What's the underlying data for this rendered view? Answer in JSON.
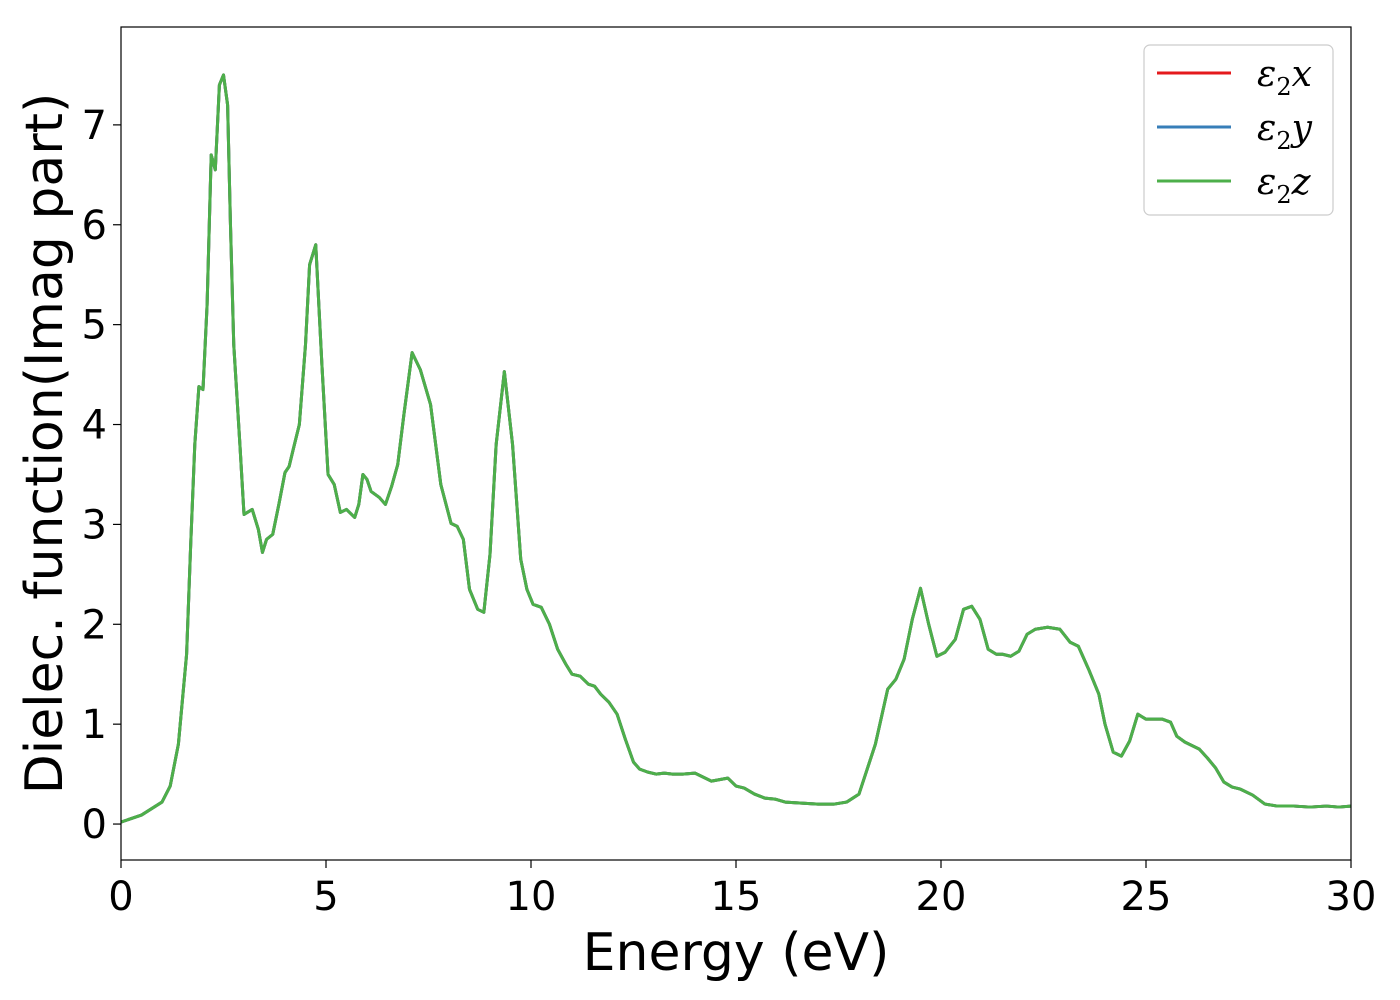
{
  "chart_data": {
    "type": "line",
    "xlabel": "Energy (eV)",
    "ylabel": "Dielec. function(Imag part)",
    "xlim": [
      0,
      30
    ],
    "ylim": [
      -0.36,
      7.98
    ],
    "xticks": [
      0,
      5,
      10,
      15,
      20,
      25,
      30
    ],
    "yticks": [
      0,
      1,
      2,
      3,
      4,
      5,
      6,
      7
    ],
    "grid": false,
    "legend_position": "top-right",
    "series": [
      {
        "name": "ε2x",
        "legend_base": "ε",
        "legend_sub": "2",
        "legend_tail": "x",
        "color": "#e41a1c"
      },
      {
        "name": "ε2y",
        "legend_base": "ε",
        "legend_sub": "2",
        "legend_tail": "y",
        "color": "#377eb8"
      },
      {
        "name": "ε2z",
        "legend_base": "ε",
        "legend_sub": "2",
        "legend_tail": "z",
        "color": "#4daf4a"
      }
    ],
    "x": [
      0,
      0.5,
      1.0,
      1.2,
      1.4,
      1.6,
      1.7,
      1.8,
      1.9,
      2.0,
      2.1,
      2.2,
      2.3,
      2.4,
      2.5,
      2.6,
      2.67,
      2.75,
      2.9,
      3.0,
      3.2,
      3.35,
      3.45,
      3.55,
      3.7,
      3.85,
      4.0,
      4.1,
      4.2,
      4.35,
      4.5,
      4.6,
      4.75,
      4.9,
      5.05,
      5.2,
      5.35,
      5.5,
      5.7,
      5.8,
      5.9,
      6.0,
      6.1,
      6.3,
      6.45,
      6.6,
      6.75,
      6.9,
      7.1,
      7.3,
      7.55,
      7.8,
      8.05,
      8.2,
      8.35,
      8.5,
      8.7,
      8.85,
      9.0,
      9.15,
      9.35,
      9.55,
      9.75,
      9.9,
      10.05,
      10.25,
      10.45,
      10.65,
      10.85,
      11.0,
      11.2,
      11.4,
      11.55,
      11.7,
      11.9,
      12.1,
      12.3,
      12.5,
      12.65,
      12.85,
      13.05,
      13.25,
      13.45,
      13.7,
      14.0,
      14.4,
      14.8,
      15.0,
      15.2,
      15.45,
      15.7,
      15.95,
      16.2,
      16.6,
      17.0,
      17.4,
      17.7,
      18.0,
      18.4,
      18.7,
      18.9,
      19.1,
      19.3,
      19.5,
      19.7,
      19.9,
      20.1,
      20.35,
      20.55,
      20.75,
      20.95,
      21.15,
      21.35,
      21.5,
      21.7,
      21.9,
      22.1,
      22.3,
      22.6,
      22.9,
      23.15,
      23.35,
      23.6,
      23.85,
      24.0,
      24.2,
      24.4,
      24.6,
      24.8,
      25.0,
      25.2,
      25.4,
      25.6,
      25.75,
      25.95,
      26.15,
      26.3,
      26.5,
      26.7,
      26.9,
      27.1,
      27.3,
      27.6,
      27.9,
      28.2,
      28.6,
      29.0,
      29.4,
      29.7,
      30.0
    ],
    "y": [
      0.02,
      0.09,
      0.22,
      0.38,
      0.8,
      1.7,
      2.8,
      3.8,
      4.38,
      4.35,
      5.2,
      6.7,
      6.55,
      7.4,
      7.5,
      7.2,
      6.0,
      4.8,
      3.8,
      3.1,
      3.15,
      2.95,
      2.72,
      2.85,
      2.9,
      3.2,
      3.52,
      3.58,
      3.75,
      4.0,
      4.8,
      5.6,
      5.8,
      4.6,
      3.5,
      3.4,
      3.12,
      3.15,
      3.07,
      3.2,
      3.5,
      3.45,
      3.33,
      3.27,
      3.2,
      3.38,
      3.6,
      4.1,
      4.72,
      4.55,
      4.2,
      3.4,
      3.01,
      2.98,
      2.85,
      2.35,
      2.15,
      2.12,
      2.7,
      3.8,
      4.53,
      3.8,
      2.65,
      2.35,
      2.2,
      2.17,
      2.0,
      1.75,
      1.6,
      1.5,
      1.48,
      1.4,
      1.38,
      1.3,
      1.22,
      1.1,
      0.85,
      0.62,
      0.55,
      0.52,
      0.5,
      0.51,
      0.5,
      0.5,
      0.51,
      0.43,
      0.46,
      0.38,
      0.36,
      0.3,
      0.26,
      0.25,
      0.22,
      0.21,
      0.2,
      0.2,
      0.22,
      0.3,
      0.8,
      1.35,
      1.45,
      1.65,
      2.05,
      2.36,
      2.0,
      1.68,
      1.72,
      1.85,
      2.15,
      2.18,
      2.05,
      1.75,
      1.7,
      1.7,
      1.68,
      1.73,
      1.9,
      1.95,
      1.97,
      1.95,
      1.82,
      1.78,
      1.55,
      1.3,
      1.0,
      0.72,
      0.68,
      0.83,
      1.1,
      1.05,
      1.05,
      1.05,
      1.02,
      0.88,
      0.82,
      0.78,
      0.75,
      0.66,
      0.56,
      0.42,
      0.37,
      0.35,
      0.29,
      0.2,
      0.18,
      0.18,
      0.17,
      0.18,
      0.17,
      0.18
    ]
  }
}
